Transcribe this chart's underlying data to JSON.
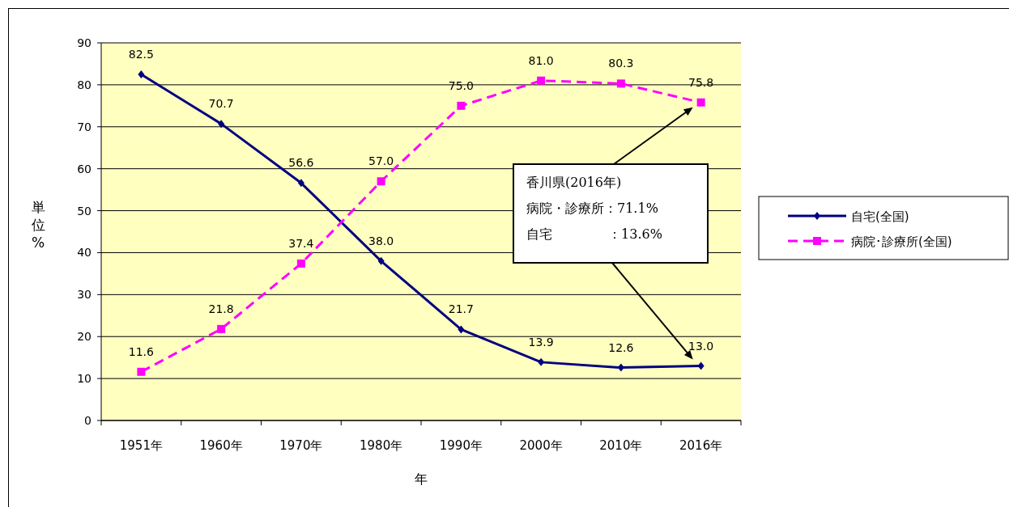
{
  "chart_data": {
    "type": "line",
    "xlabel": "年",
    "ylabel": "単位%",
    "categories": [
      "1951年",
      "1960年",
      "1970年",
      "1980年",
      "1990年",
      "2000年",
      "2010年",
      "2016年"
    ],
    "series": [
      {
        "name": "自宅(全国)",
        "color": "#000080",
        "marker": "diamond",
        "line_style": "solid",
        "values": [
          82.5,
          70.7,
          56.6,
          38.0,
          21.7,
          13.9,
          12.6,
          13.0
        ],
        "value_labels": [
          "82.5",
          "70.7",
          "56.6",
          "38.0",
          "21.7",
          "13.9",
          "12.6",
          "13.0"
        ]
      },
      {
        "name": "病院･診療所(全国)",
        "color": "#ff00ff",
        "marker": "square",
        "line_style": "dashed",
        "values": [
          11.6,
          21.8,
          37.4,
          57.0,
          75.0,
          81.0,
          80.3,
          75.8
        ],
        "value_labels": [
          "11.6",
          "21.8",
          "37.4",
          "57.0",
          "75.0",
          "81.0",
          "80.3",
          "75.8"
        ]
      }
    ],
    "ylim": [
      0,
      90
    ],
    "yticks": [
      0,
      10,
      20,
      30,
      40,
      50,
      60,
      70,
      80,
      90
    ],
    "grid": "y",
    "legend": "right",
    "annotations": [
      "香川県(2016年)",
      "病院・診療所：71.1%",
      "自宅　　　　 ：13.6%"
    ]
  }
}
